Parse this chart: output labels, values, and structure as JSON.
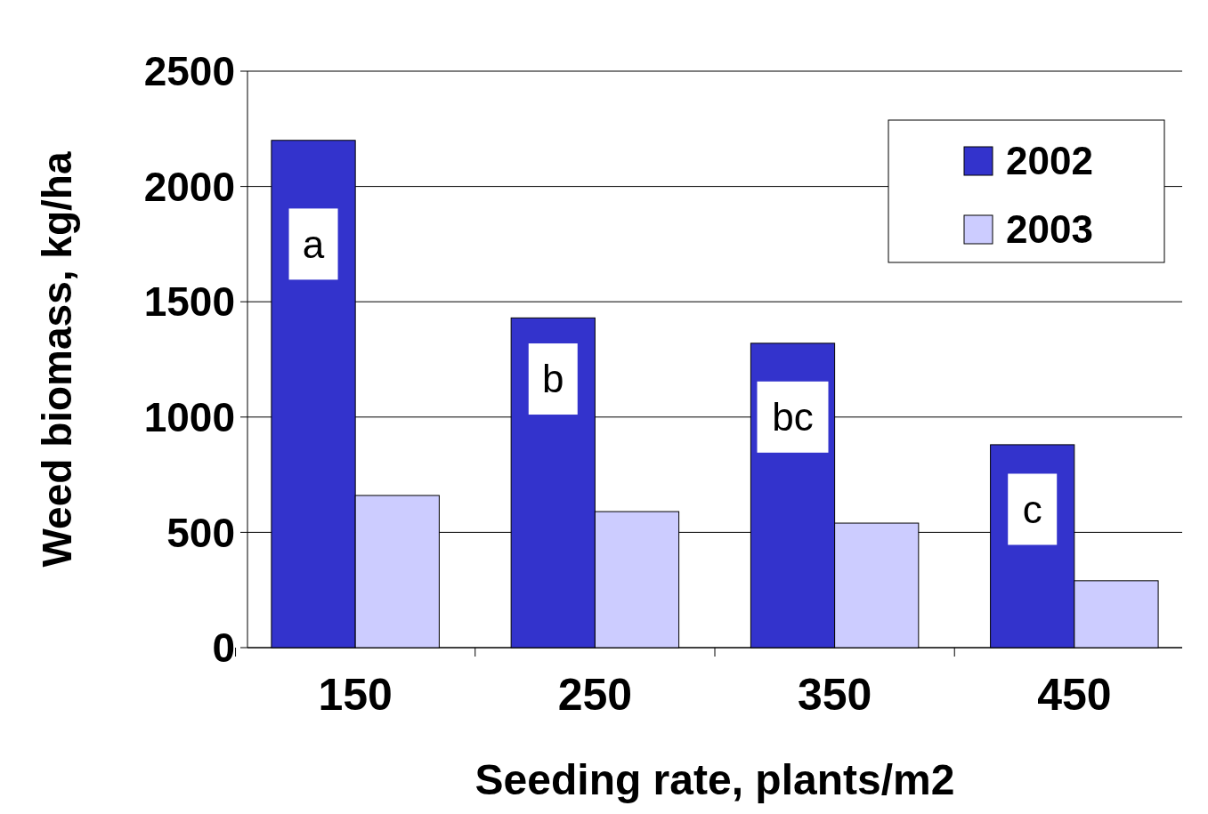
{
  "chart_data": {
    "type": "bar",
    "xlabel": "Seeding rate, plants/m2",
    "ylabel": "Weed biomass, kg/ha",
    "categories": [
      "150",
      "250",
      "350",
      "450"
    ],
    "series": [
      {
        "name": "2002",
        "color": "#3333cc",
        "values": [
          2200,
          1430,
          1320,
          880
        ]
      },
      {
        "name": "2003",
        "color": "#ccccff",
        "values": [
          660,
          590,
          540,
          290
        ]
      }
    ],
    "ylim": [
      0,
      2500
    ],
    "yticks": [
      0,
      500,
      1000,
      1500,
      2000,
      2500
    ],
    "grid": "y",
    "legend": "top right",
    "annotations": [
      {
        "text": "a",
        "x": "150",
        "y": 1750
      },
      {
        "text": "b",
        "x": "250",
        "y": 1165
      },
      {
        "text": "bc",
        "x": "350",
        "y": 1000
      },
      {
        "text": "c",
        "x": "450",
        "y": 600
      }
    ]
  }
}
